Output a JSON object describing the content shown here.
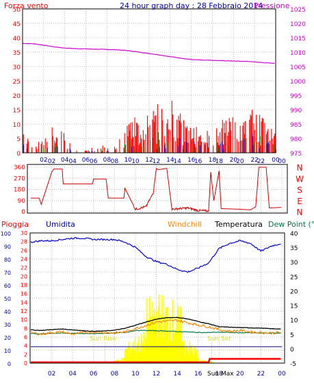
{
  "colors": {
    "wind": "#ff0000",
    "pressure": "#cc00cc",
    "humidity": "#0000cc",
    "windchill": "#ff8800",
    "temperature": "#000000",
    "dewpoint": "#007744",
    "rain": "#ff0000",
    "solar": "#ffff00",
    "frame": "#000000",
    "grid": "#bbbbbb"
  },
  "top": {
    "left_title": "Forza vento",
    "center_title": "24 hour graph day : 28 Febbraio 2014",
    "right_title": "Pressione",
    "left_ticks": [
      "50",
      "45",
      "40",
      "35",
      "30",
      "25",
      "20",
      "15",
      "10",
      "5",
      "0"
    ],
    "right_ticks": [
      "1025",
      "1020",
      "1015",
      "1010",
      "1005",
      "1000",
      "995",
      "990",
      "985",
      "980",
      "975"
    ],
    "x_ticks": [
      "02",
      "04",
      "06",
      "08",
      "10",
      "12",
      "14",
      "16",
      "18",
      "20",
      "22",
      "00"
    ]
  },
  "dir": {
    "left_ticks": [
      "360",
      "270",
      "180",
      "90",
      "0"
    ],
    "compass": [
      "N",
      "W",
      "S",
      "E",
      "N"
    ],
    "x_ticks": [
      "02",
      "04",
      "06",
      "08",
      "10",
      "12",
      "14",
      "16",
      "18",
      "20",
      "22",
      "00"
    ]
  },
  "bottom": {
    "legend": [
      "Pioggia",
      "Umidita",
      "Windchill",
      "Temperatura",
      "Dew Point (°C"
    ],
    "hum_ticks": [
      "100",
      "90",
      "80",
      "70",
      "60",
      "50",
      "40",
      "30",
      "20",
      "10",
      "0"
    ],
    "rain_ticks": [
      "30",
      "28",
      "26",
      "24",
      "22",
      "20",
      "18",
      "16",
      "14",
      "12",
      "10",
      "8",
      "6",
      "4",
      "2",
      "0"
    ],
    "temp_ticks": [
      "40",
      "35",
      "30",
      "25",
      "20",
      "15",
      "10",
      "5",
      "0",
      "-5"
    ],
    "x_ticks": [
      "02",
      "04",
      "06",
      "08",
      "10",
      "12",
      "14",
      "16",
      "18",
      "20",
      "22",
      "00"
    ],
    "sunrise": "Sun Rise",
    "sunset": "Sun Set",
    "sunmax": "Sun Max"
  },
  "chart_data": [
    {
      "type": "line",
      "title": "24 hour graph day : 28 Febbraio 2014",
      "xlabel": "",
      "ylabel": "Forza vento",
      "ylim": [
        0,
        50
      ],
      "y2label": "Pressione",
      "y2lim": [
        975,
        1025
      ],
      "series": [
        {
          "name": "Pressione",
          "x": [
            0,
            1,
            2,
            3,
            4,
            5,
            6,
            7,
            8,
            9,
            10,
            11,
            12,
            13,
            14,
            15,
            16,
            17,
            18,
            19,
            20,
            21,
            22,
            23,
            24
          ],
          "values": [
            1013,
            1012.9,
            1012.4,
            1011.8,
            1011.4,
            1011.2,
            1011.1,
            1011,
            1010.9,
            1010.8,
            1010.5,
            1010,
            1009.5,
            1009,
            1008.4,
            1007.9,
            1007.4,
            1007.2,
            1007.1,
            1007,
            1006.9,
            1006.8,
            1006.6,
            1006.3,
            1006.1
          ]
        },
        {
          "name": "Forza vento",
          "x": [
            0,
            1,
            2,
            3,
            4,
            5,
            6,
            7,
            8,
            9,
            10,
            11,
            12,
            13,
            14,
            15,
            16,
            17,
            18,
            19,
            20,
            21,
            22,
            23,
            24
          ],
          "values": [
            7,
            2,
            5,
            9,
            6,
            3,
            1,
            3,
            2,
            3,
            12,
            11,
            14,
            16,
            18,
            13,
            8,
            9,
            6,
            11,
            12,
            11,
            15,
            10,
            9
          ]
        }
      ]
    },
    {
      "type": "line",
      "title": "",
      "xlabel": "",
      "ylabel": "",
      "ylim": [
        0,
        360
      ],
      "series": [
        {
          "name": "",
          "x": [
            0,
            0.8,
            1,
            2,
            2.2,
            3,
            3.1,
            5.9,
            6,
            7.2,
            7.4,
            8.9,
            9,
            10,
            11,
            11.7,
            12,
            12.2,
            13,
            13.5,
            14.2,
            15,
            16,
            17,
            17.2,
            17.5,
            18,
            18.2,
            20,
            21,
            21.5,
            21.8,
            22.5,
            22.8,
            24
          ],
          "values": [
            110,
            110,
            60,
            320,
            345,
            345,
            225,
            225,
            265,
            265,
            110,
            110,
            190,
            20,
            40,
            150,
            350,
            340,
            350,
            20,
            25,
            30,
            10,
            5,
            320,
            90,
            330,
            25,
            20,
            15,
            40,
            360,
            360,
            30,
            35
          ]
        }
      ]
    },
    {
      "type": "line",
      "title": "",
      "xlabel": "",
      "ylabel": "Umidita",
      "ylim": [
        0,
        100
      ],
      "y2label": "Temperatura",
      "y2lim": [
        -5,
        40
      ],
      "series": [
        {
          "name": "Umidita",
          "x": [
            0,
            1,
            2,
            3,
            4,
            5,
            6,
            7,
            8,
            9,
            10,
            11,
            12,
            13,
            14,
            15,
            16,
            17,
            18,
            19,
            20,
            21,
            22,
            23,
            24
          ],
          "values": [
            93,
            94,
            94,
            95,
            96,
            96,
            95,
            95,
            95,
            93,
            89,
            82,
            78,
            76,
            72,
            70,
            73,
            77,
            88,
            92,
            94,
            92,
            86,
            90,
            92
          ]
        },
        {
          "name": "Temperatura",
          "x": [
            0,
            1,
            2,
            3,
            4,
            5,
            6,
            7,
            8,
            9,
            10,
            11,
            12,
            13,
            14,
            15,
            16,
            17,
            18,
            19,
            20,
            21,
            22,
            23,
            24
          ],
          "values": [
            6.5,
            6.3,
            6.6,
            6.8,
            6.5,
            6.2,
            6.0,
            6.1,
            6.4,
            7.0,
            8.1,
            9.2,
            10.2,
            10.7,
            10.8,
            10.3,
            9.4,
            8.6,
            7.6,
            7.4,
            7.3,
            7.2,
            7.1,
            6.9,
            6.8
          ]
        },
        {
          "name": "Windchill",
          "x": [
            0,
            1,
            2,
            3,
            4,
            5,
            6,
            7,
            8,
            9,
            10,
            11,
            12,
            13,
            14,
            15,
            16,
            17,
            18,
            19,
            20,
            21,
            22,
            23,
            24
          ],
          "values": [
            5.5,
            5.0,
            5.6,
            5.8,
            5.0,
            5.5,
            5.8,
            5.6,
            5.4,
            5.8,
            7.0,
            8.0,
            9.2,
            9.5,
            9.8,
            9.0,
            8.2,
            7.6,
            6.6,
            6.0,
            6.3,
            5.8,
            5.6,
            5.4,
            5.6
          ]
        },
        {
          "name": "Dew Point (°C",
          "x": [
            0,
            1,
            2,
            3,
            4,
            5,
            6,
            7,
            8,
            9,
            10,
            11,
            12,
            13,
            14,
            15,
            16,
            17,
            18,
            19,
            20,
            21,
            22,
            23,
            24
          ],
          "values": [
            5.2,
            5.1,
            5.3,
            5.4,
            5.3,
            5.2,
            5.2,
            5.3,
            5.4,
            5.6,
            6.3,
            6.3,
            6.2,
            6.1,
            5.9,
            5.8,
            5.6,
            5.6,
            5.7,
            5.6,
            5.5,
            5.5,
            5.4,
            5.4,
            5.4
          ]
        },
        {
          "name": "Pioggia",
          "x": [
            0,
            17,
            17.1,
            23.9,
            24
          ],
          "values": [
            0.2,
            0.2,
            1.0,
            1.0,
            1.0
          ]
        }
      ]
    }
  ]
}
